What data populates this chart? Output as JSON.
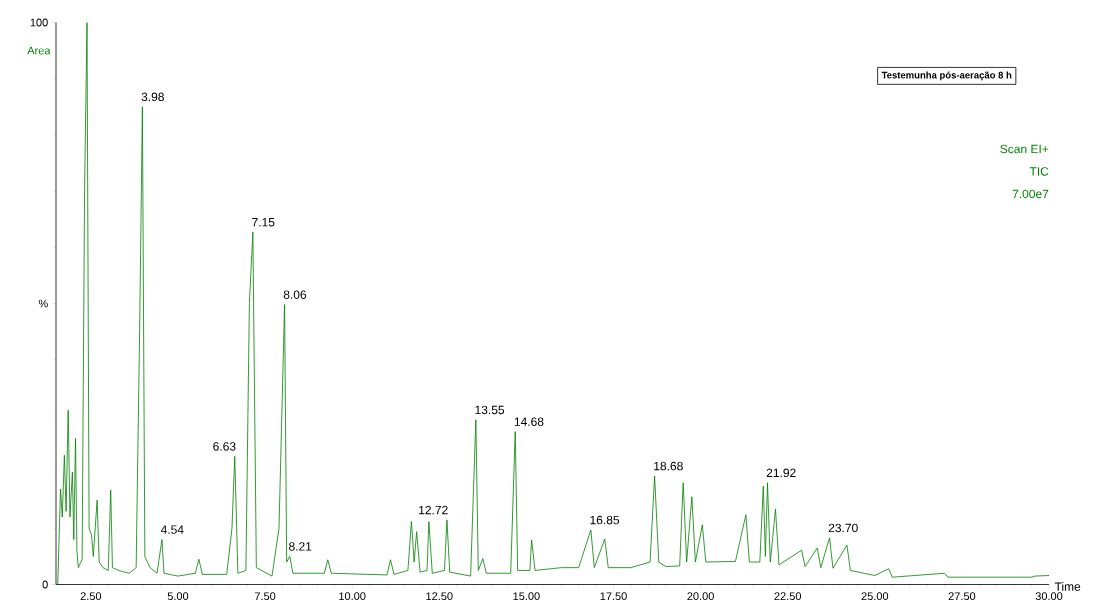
{
  "chart_data": {
    "type": "line",
    "title": "Testemunha pós-aeração 8 h",
    "xlabel": "Time",
    "ylabel": "Area",
    "xlim": [
      1.5,
      30
    ],
    "ylim": [
      0,
      100
    ],
    "xticks": [
      {
        "value": 2.5,
        "label": "2.50"
      },
      {
        "value": 5,
        "label": "5.00"
      },
      {
        "value": 7.5,
        "label": "7.50"
      },
      {
        "value": 10,
        "label": "10.00"
      },
      {
        "value": 12.5,
        "label": "12.50"
      },
      {
        "value": 15,
        "label": "15.00"
      },
      {
        "value": 17.5,
        "label": "17.50"
      },
      {
        "value": 20,
        "label": "20.00"
      },
      {
        "value": 22.5,
        "label": "22.50"
      },
      {
        "value": 25,
        "label": "25.00"
      },
      {
        "value": 27.5,
        "label": "27.50"
      },
      {
        "value": 30,
        "label": "30.00"
      }
    ],
    "yticks": [
      0,
      {
        "value": 50,
        "label": "%"
      },
      100
    ],
    "grid": false,
    "legend": false,
    "marker": "none",
    "line_style": "solid",
    "series": [
      {
        "color": "#008000",
        "x": [
          1.55,
          1.63,
          1.68,
          1.74,
          1.79,
          1.85,
          1.9,
          1.97,
          2.01,
          2.06,
          2.1,
          2.14,
          2.25,
          2.32,
          2.39,
          2.45,
          2.52,
          2.57,
          2.68,
          2.74,
          2.85,
          3.0,
          3.07,
          3.12,
          3.3,
          3.6,
          3.8,
          3.9,
          3.98,
          4.05,
          4.2,
          4.4,
          4.54,
          4.6,
          5.0,
          5.5,
          5.6,
          5.7,
          6.4,
          6.55,
          6.63,
          6.72,
          6.95,
          7.05,
          7.15,
          7.25,
          7.7,
          7.9,
          8.06,
          8.12,
          8.21,
          8.3,
          9.2,
          9.3,
          9.4,
          11.0,
          11.1,
          11.2,
          11.6,
          11.7,
          11.78,
          11.85,
          11.95,
          12.15,
          12.2,
          12.3,
          12.65,
          12.72,
          12.8,
          13.4,
          13.55,
          13.62,
          13.75,
          13.85,
          14.55,
          14.68,
          14.75,
          15.1,
          15.15,
          15.25,
          16.0,
          16.5,
          16.85,
          16.95,
          17.25,
          17.35,
          18.0,
          18.55,
          18.68,
          18.8,
          19.0,
          19.4,
          19.5,
          19.6,
          19.75,
          19.85,
          20.05,
          20.15,
          21.0,
          21.3,
          21.4,
          21.7,
          21.8,
          21.86,
          21.92,
          22.0,
          22.15,
          22.25,
          22.9,
          23.0,
          23.35,
          23.45,
          23.7,
          23.8,
          24.2,
          24.3,
          25.0,
          25.4,
          25.5,
          27.0,
          27.1,
          29.5,
          29.6,
          30.0
        ],
        "values": [
          0,
          17,
          12,
          23,
          13,
          31,
          12,
          20,
          8,
          26,
          6,
          3,
          4.5,
          70,
          100,
          10,
          8.8,
          5,
          15,
          4,
          3,
          2.5,
          16.8,
          3,
          2.5,
          2,
          3,
          45,
          85,
          5,
          3,
          2,
          8,
          2,
          1.5,
          2,
          4.5,
          1.8,
          1.8,
          10,
          22.8,
          2,
          2.5,
          50,
          62.7,
          3,
          1.5,
          10,
          49.8,
          4,
          5,
          2,
          2,
          4.4,
          2,
          1.7,
          4.4,
          1.8,
          2.5,
          11.2,
          4,
          9.4,
          2.2,
          2.5,
          11.2,
          2,
          2.5,
          11.5,
          2.2,
          1.5,
          29.3,
          2.5,
          4.6,
          2,
          2,
          27.2,
          2.5,
          2.5,
          7.9,
          2.5,
          3,
          3,
          9.7,
          3,
          8.1,
          3,
          3,
          4,
          19.3,
          4,
          3.2,
          3.3,
          18.1,
          4,
          15.6,
          4,
          10.6,
          4,
          4.1,
          12.4,
          4,
          4,
          17.5,
          5,
          18.1,
          4,
          13.4,
          3.5,
          6.1,
          3.2,
          6.5,
          3,
          8.3,
          2.9,
          7.0,
          2.5,
          1.6,
          2.8,
          1.3,
          2.0,
          1.3,
          1.3,
          1.5,
          1.6
        ]
      }
    ],
    "annotations": [
      "Scan EI+",
      "TIC",
      "7.00e7",
      {
        "text": "3.98",
        "x": 3.98,
        "y": 85
      },
      {
        "text": "4.54",
        "x": 4.54,
        "y": 8
      },
      {
        "text": "6.63",
        "x": 6.63,
        "y": 22.8
      },
      {
        "text": "7.15",
        "x": 7.15,
        "y": 62.7
      },
      {
        "text": "8.06",
        "x": 8.06,
        "y": 49.8
      },
      {
        "text": "8.21",
        "x": 8.21,
        "y": 5
      },
      {
        "text": "12.72",
        "x": 12.72,
        "y": 11.5
      },
      {
        "text": "13.55",
        "x": 13.55,
        "y": 29.3
      },
      {
        "text": "14.68",
        "x": 14.68,
        "y": 27.2
      },
      {
        "text": "16.85",
        "x": 16.85,
        "y": 9.7
      },
      {
        "text": "18.68",
        "x": 18.68,
        "y": 19.3
      },
      {
        "text": "21.92",
        "x": 21.92,
        "y": 18.1
      },
      {
        "text": "23.70",
        "x": 23.7,
        "y": 8.3
      }
    ]
  }
}
